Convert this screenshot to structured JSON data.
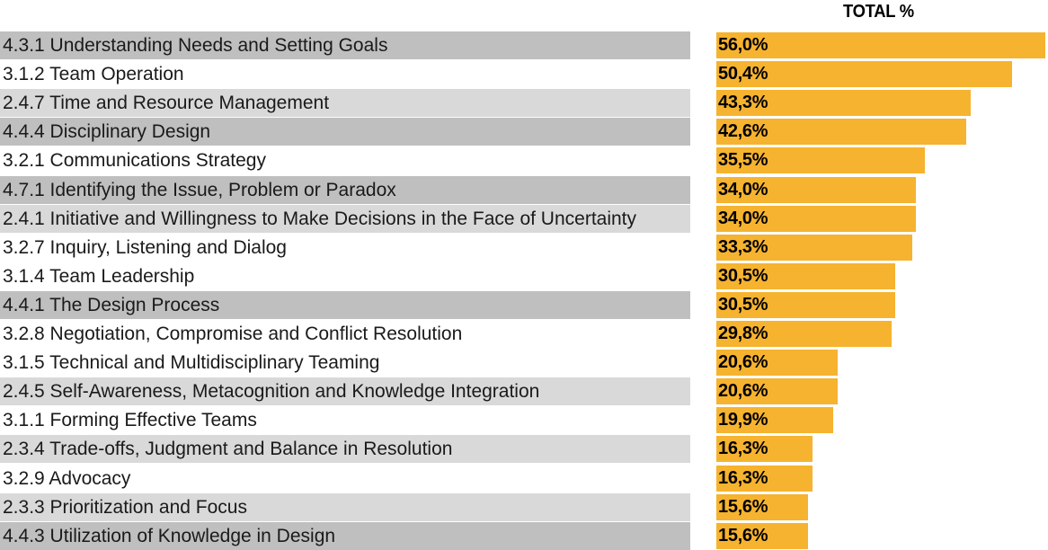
{
  "chart_data": {
    "type": "bar",
    "orientation": "horizontal",
    "column_header": "TOTAL %",
    "categories": [
      "4.3.1 Understanding Needs and Setting Goals",
      "3.1.2 Team Operation",
      "2.4.7 Time and Resource Management",
      "4.4.4 Disciplinary Design",
      "3.2.1 Communications Strategy",
      "4.7.1 Identifying the Issue, Problem or Paradox",
      "2.4.1 Initiative and Willingness to Make Decisions in the Face of Uncertainty",
      "3.2.7 Inquiry, Listening and Dialog",
      "3.1.4 Team Leadership",
      "4.4.1 The Design Process",
      "3.2.8 Negotiation, Compromise and Conflict Resolution",
      "3.1.5 Technical and Multidisciplinary Teaming",
      "2.4.5 Self-Awareness, Metacognition and Knowledge Integration",
      "3.1.1 Forming Effective Teams",
      "2.3.4 Trade-offs, Judgment and Balance in Resolution",
      "3.2.9 Advocacy",
      "2.3.3 Prioritization and Focus",
      "4.4.3 Utilization of Knowledge in Design"
    ],
    "values": [
      56.0,
      50.4,
      43.3,
      42.6,
      35.5,
      34.0,
      34.0,
      33.3,
      30.5,
      30.5,
      29.8,
      20.6,
      20.6,
      19.9,
      16.3,
      16.3,
      15.6,
      15.6
    ],
    "value_labels": [
      "56,0%",
      "50,4%",
      "43,3%",
      "42,6%",
      "35,5%",
      "34,0%",
      "34,0%",
      "33,3%",
      "30,5%",
      "30,5%",
      "29,8%",
      "20,6%",
      "20,6%",
      "19,9%",
      "16,3%",
      "16,3%",
      "15,6%",
      "15,6%"
    ],
    "row_shading": [
      "dark",
      "white",
      "light",
      "dark",
      "white",
      "dark",
      "light",
      "white",
      "white",
      "dark",
      "white",
      "white",
      "light",
      "white",
      "light",
      "white",
      "light",
      "dark"
    ],
    "colors": {
      "bar": "#f6b32f",
      "row_dark": "#bfbfbf",
      "row_light": "#d9d9d9",
      "row_white": "#ffffff"
    },
    "xlim": [
      0,
      56.0
    ],
    "grid": false,
    "legend": "none"
  }
}
